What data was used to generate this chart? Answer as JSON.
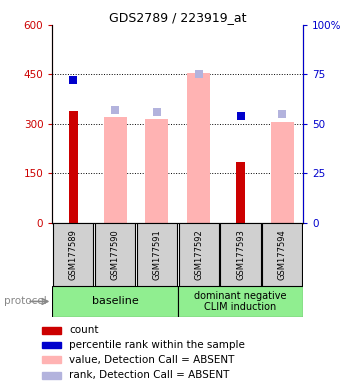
{
  "title": "GDS2789 / 223919_at",
  "categories": [
    "GSM177589",
    "GSM177590",
    "GSM177591",
    "GSM177592",
    "GSM177593",
    "GSM177594"
  ],
  "red_bars": [
    340,
    null,
    null,
    null,
    185,
    null
  ],
  "blue_squares_y": [
    72,
    null,
    null,
    null,
    54,
    null
  ],
  "pink_bars": [
    null,
    320,
    315,
    455,
    null,
    305
  ],
  "lightblue_squares_y": [
    null,
    57,
    56,
    75,
    null,
    55
  ],
  "ylim_left": [
    0,
    600
  ],
  "ylim_right": [
    0,
    100
  ],
  "yticks_left": [
    0,
    150,
    300,
    450,
    600
  ],
  "yticks_right": [
    0,
    25,
    50,
    75,
    100
  ],
  "yticklabels_left": [
    "0",
    "150",
    "300",
    "450",
    "600"
  ],
  "yticklabels_right": [
    "0",
    "25",
    "50",
    "75",
    "100%"
  ],
  "color_red": "#cc0000",
  "color_blue": "#0000cc",
  "color_pink": "#ffb3b3",
  "color_lightblue": "#b3b3dd",
  "color_gray_bg": "#d0d0d0",
  "color_green": "#90ee90",
  "legend_items": [
    {
      "label": "count",
      "color": "#cc0000"
    },
    {
      "label": "percentile rank within the sample",
      "color": "#0000cc"
    },
    {
      "label": "value, Detection Call = ABSENT",
      "color": "#ffb3b3"
    },
    {
      "label": "rank, Detection Call = ABSENT",
      "color": "#b3b3dd"
    }
  ]
}
